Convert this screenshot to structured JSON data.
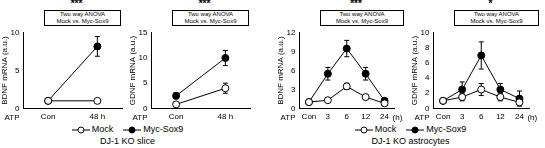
{
  "chart_data": [
    {
      "type": "line",
      "y_label": "BDNF mRNA (a.u.)",
      "x_label": "ATP",
      "categories": [
        "Con",
        "48 h"
      ],
      "ylim": [
        0,
        10
      ],
      "yticks": [
        0,
        5,
        10
      ],
      "grid": false,
      "annotations": [
        "***",
        "Two way ANOVA",
        "Mock vs. Myc-Sox9"
      ],
      "series": [
        {
          "name": "Mock",
          "color": "#000000",
          "marker": "circle_open",
          "values": [
            1,
            1
          ],
          "errors": [
            0.2,
            0.3
          ]
        },
        {
          "name": "Myc-Sox9",
          "color": "#000000",
          "marker": "circle",
          "values": [
            1,
            8.2
          ],
          "errors": [
            0.3,
            1.3
          ]
        }
      ]
    },
    {
      "type": "line",
      "y_label": "GDNF mRNA (a.u.)",
      "x_label": "ATP",
      "categories": [
        "Con",
        "48 h"
      ],
      "ylim": [
        0,
        15
      ],
      "yticks": [
        0,
        5,
        10,
        15
      ],
      "grid": false,
      "annotations": [
        "***",
        "Two way ANOVA",
        "Mock vs. Myc-Sox9"
      ],
      "series": [
        {
          "name": "Mock",
          "color": "#000000",
          "marker": "circle_open",
          "values": [
            0.8,
            4
          ],
          "errors": [
            0.3,
            1
          ]
        },
        {
          "name": "Myc-Sox9",
          "color": "#000000",
          "marker": "circle",
          "values": [
            2.5,
            10
          ],
          "errors": [
            0.6,
            1.5
          ]
        }
      ]
    },
    {
      "type": "line",
      "y_label": "BDNF mRNA (a.u.)",
      "x_label": "ATP",
      "x_unit": "(h)",
      "categories": [
        "Con",
        "3",
        "6",
        "12",
        "24"
      ],
      "ylim": [
        0,
        12
      ],
      "yticks": [
        0,
        3,
        6,
        9,
        12
      ],
      "grid": false,
      "annotations": [
        "***",
        "Two way ANOVA",
        "Mock vs. Myc-Sox9"
      ],
      "series": [
        {
          "name": "Mock",
          "color": "#000000",
          "marker": "circle_open",
          "values": [
            1,
            1.3,
            3.5,
            1.8,
            0.8
          ],
          "errors": [
            0.2,
            0.3,
            0.5,
            0.3,
            0.2
          ]
        },
        {
          "name": "Myc-Sox9",
          "color": "#000000",
          "marker": "circle",
          "values": [
            1,
            5.5,
            9.5,
            5.5,
            1.2
          ],
          "errors": [
            0.3,
            1,
            1.3,
            1,
            0.3
          ]
        }
      ]
    },
    {
      "type": "line",
      "y_label": "GDNF mRNA (a.u.)",
      "x_label": "ATP",
      "x_unit": "(h)",
      "categories": [
        "Con",
        "3",
        "6",
        "12",
        "24"
      ],
      "ylim": [
        0,
        10
      ],
      "yticks": [
        0,
        2,
        4,
        6,
        8,
        10
      ],
      "grid": false,
      "annotations": [
        "*",
        "Two way ANOVA",
        "Mock vs. Myc-Sox9"
      ],
      "series": [
        {
          "name": "Mock",
          "color": "#000000",
          "marker": "circle_open",
          "values": [
            1,
            1.5,
            2.5,
            1.5,
            0.8
          ],
          "errors": [
            0.3,
            0.5,
            0.8,
            0.5,
            0.3
          ]
        },
        {
          "name": "Myc-Sox9",
          "color": "#000000",
          "marker": "circle",
          "values": [
            1,
            2.5,
            7,
            2.5,
            1.3
          ],
          "errors": [
            0.2,
            1,
            1.8,
            0.8,
            1
          ]
        }
      ]
    }
  ],
  "group_titles": [
    "DJ-1 KO slice",
    "DJ-1 KO astrocytes"
  ]
}
